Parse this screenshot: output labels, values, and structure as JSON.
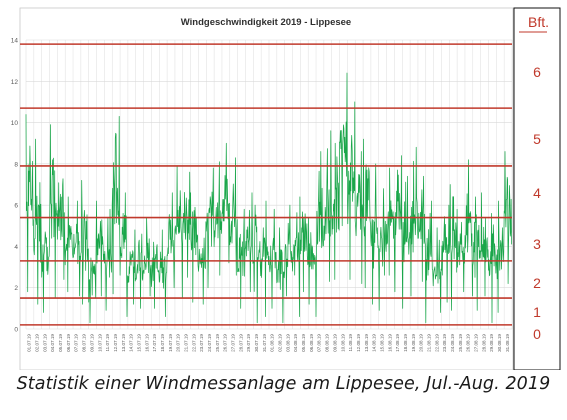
{
  "chart_data": {
    "type": "line",
    "title": "Windgeschwindigkeit 2019 - Lippesee",
    "y_ticks": [
      "0",
      "2",
      "4",
      "6",
      "8",
      "10",
      "12",
      "14"
    ],
    "ylim": [
      0,
      14
    ],
    "y_unit": "m/s",
    "grid": true,
    "x_tick_labels": [
      "01.07.19",
      "02.07.19",
      "03.07.19",
      "04.07.19",
      "05.07.19",
      "06.07.19",
      "07.07.19",
      "08.07.19",
      "09.07.19",
      "10.07.19",
      "11.07.19",
      "12.07.19",
      "13.07.19",
      "14.07.19",
      "15.07.19",
      "16.07.19",
      "17.07.19",
      "18.07.19",
      "19.07.19",
      "20.07.19",
      "21.07.19",
      "22.07.19",
      "23.07.19",
      "24.07.19",
      "25.07.19",
      "26.07.19",
      "27.07.19",
      "28.07.19",
      "29.07.19",
      "30.07.19",
      "31.07.19",
      "01.08.19",
      "02.08.19",
      "03.08.19",
      "04.08.19",
      "05.08.19",
      "06.08.19",
      "07.08.19",
      "08.08.19",
      "09.08.19",
      "10.08.19",
      "11.08.19",
      "12.08.19",
      "13.08.19",
      "14.08.19",
      "15.08.19",
      "16.08.19",
      "17.08.19",
      "18.08.19",
      "19.08.19",
      "20.08.19",
      "21.08.19",
      "22.08.19",
      "23.08.19",
      "24.08.19",
      "25.08.19",
      "26.08.19",
      "27.08.19",
      "28.08.19",
      "29.08.19",
      "30.08.19",
      "31.08.19"
    ],
    "series": [
      {
        "color": "#1aa64a",
        "day_min": [
          1.8,
          1.2,
          0.8,
          1.5,
          2.4,
          1.8,
          1.6,
          1.2,
          0.3,
          1.6,
          0.9,
          1.7,
          0.6,
          1.2,
          1.0,
          1.6,
          1.0,
          0.6,
          2.0,
          1.5,
          2.5,
          1.3,
          1.2,
          2.0,
          2.6,
          3.2,
          2.6,
          1.0,
          1.8,
          0.3,
          0.6,
          1.0,
          0.3,
          1.6,
          0.6,
          1.8,
          1.2,
          0.6,
          2.3,
          2.4,
          5.0,
          2.4,
          2.2,
          2.0,
          1.2,
          0.9,
          2.6,
          1.8,
          1.0,
          1.6,
          2.3,
          0.3,
          0.8,
          1.3,
          0.9,
          1.8,
          1.6,
          0.9,
          1.6,
          0.3,
          0.8,
          2.2
        ],
        "day_max": [
          10.4,
          9.2,
          5.8,
          9.9,
          8.6,
          6.4,
          6.2,
          7.2,
          4.2,
          6.2,
          5.8,
          10.3,
          6.6,
          4.8,
          4.6,
          5.4,
          5.0,
          4.8,
          6.6,
          7.9,
          7.6,
          6.6,
          5.2,
          7.8,
          8.1,
          9.0,
          8.3,
          5.8,
          6.6,
          6.0,
          6.2,
          5.8,
          4.9,
          6.0,
          6.4,
          6.6,
          5.4,
          8.6,
          9.6,
          9.6,
          12.4,
          11.0,
          8.6,
          9.2,
          8.0,
          6.8,
          7.8,
          8.4,
          7.4,
          8.8,
          7.4,
          6.2,
          4.9,
          6.0,
          7.0,
          5.8,
          8.2,
          6.4,
          6.6,
          5.6,
          6.2,
          8.6
        ]
      }
    ],
    "beaufort_levels": [
      {
        "label": "0",
        "ms": 0.2
      },
      {
        "label": "1",
        "ms": 1.5
      },
      {
        "label": "2",
        "ms": 3.3
      },
      {
        "label": "3",
        "ms": 5.4
      },
      {
        "label": "4",
        "ms": 7.9
      },
      {
        "label": "5",
        "ms": 10.7
      },
      {
        "label": "6",
        "ms": 13.8
      }
    ],
    "colors": {
      "wind": "#1aa64a",
      "beaufort": "#c0392b",
      "grid": "#d9d9d9",
      "axis_text": "#595959"
    }
  },
  "beaufort_header": "Bft.",
  "caption": "Statistik einer Windmessanlage am Lippesee, Jul.-Aug. 2019"
}
